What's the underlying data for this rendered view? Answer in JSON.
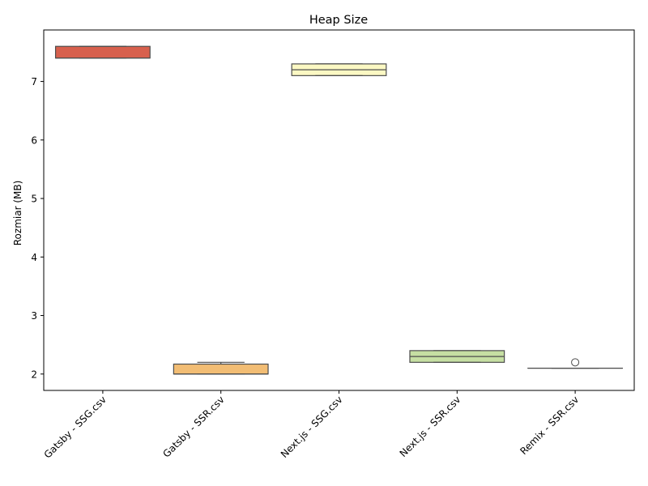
{
  "chart_data": {
    "type": "box",
    "title": "Heap Size",
    "xlabel": "",
    "ylabel": "Rozmiar (MB)",
    "ylim": [
      1.72,
      7.88
    ],
    "yticks": [
      2,
      3,
      4,
      5,
      6,
      7
    ],
    "grid": false,
    "categories": [
      "Gatsby - SSG.csv",
      "Gatsby - SSR.csv",
      "Next.js - SSG.csv",
      "Next.js - SSR.csv",
      "Remix - SSR.csv"
    ],
    "boxes": [
      {
        "category": "Gatsby - SSG.csv",
        "whisker_low": 7.4,
        "q1": 7.4,
        "median": 7.4,
        "q3": 7.6,
        "whisker_high": 7.6,
        "outliers": [],
        "color": "#d7604d"
      },
      {
        "category": "Gatsby - SSR.csv",
        "whisker_low": 2.0,
        "q1": 2.0,
        "median": 2.0,
        "q3": 2.17,
        "whisker_high": 2.2,
        "outliers": [],
        "color": "#f2bd74"
      },
      {
        "category": "Next.js - SSG.csv",
        "whisker_low": 7.1,
        "q1": 7.1,
        "median": 7.2,
        "q3": 7.3,
        "whisker_high": 7.3,
        "outliers": [],
        "color": "#fbf8c3"
      },
      {
        "category": "Next.js - SSR.csv",
        "whisker_low": 2.2,
        "q1": 2.2,
        "median": 2.3,
        "q3": 2.4,
        "whisker_high": 2.4,
        "outliers": [],
        "color": "#c6dfa3"
      },
      {
        "category": "Remix - SSR.csv",
        "whisker_low": 2.1,
        "q1": 2.1,
        "median": 2.1,
        "q3": 2.1,
        "whisker_high": 2.1,
        "outliers": [
          2.2
        ],
        "color": "#9fcfa0"
      }
    ]
  }
}
